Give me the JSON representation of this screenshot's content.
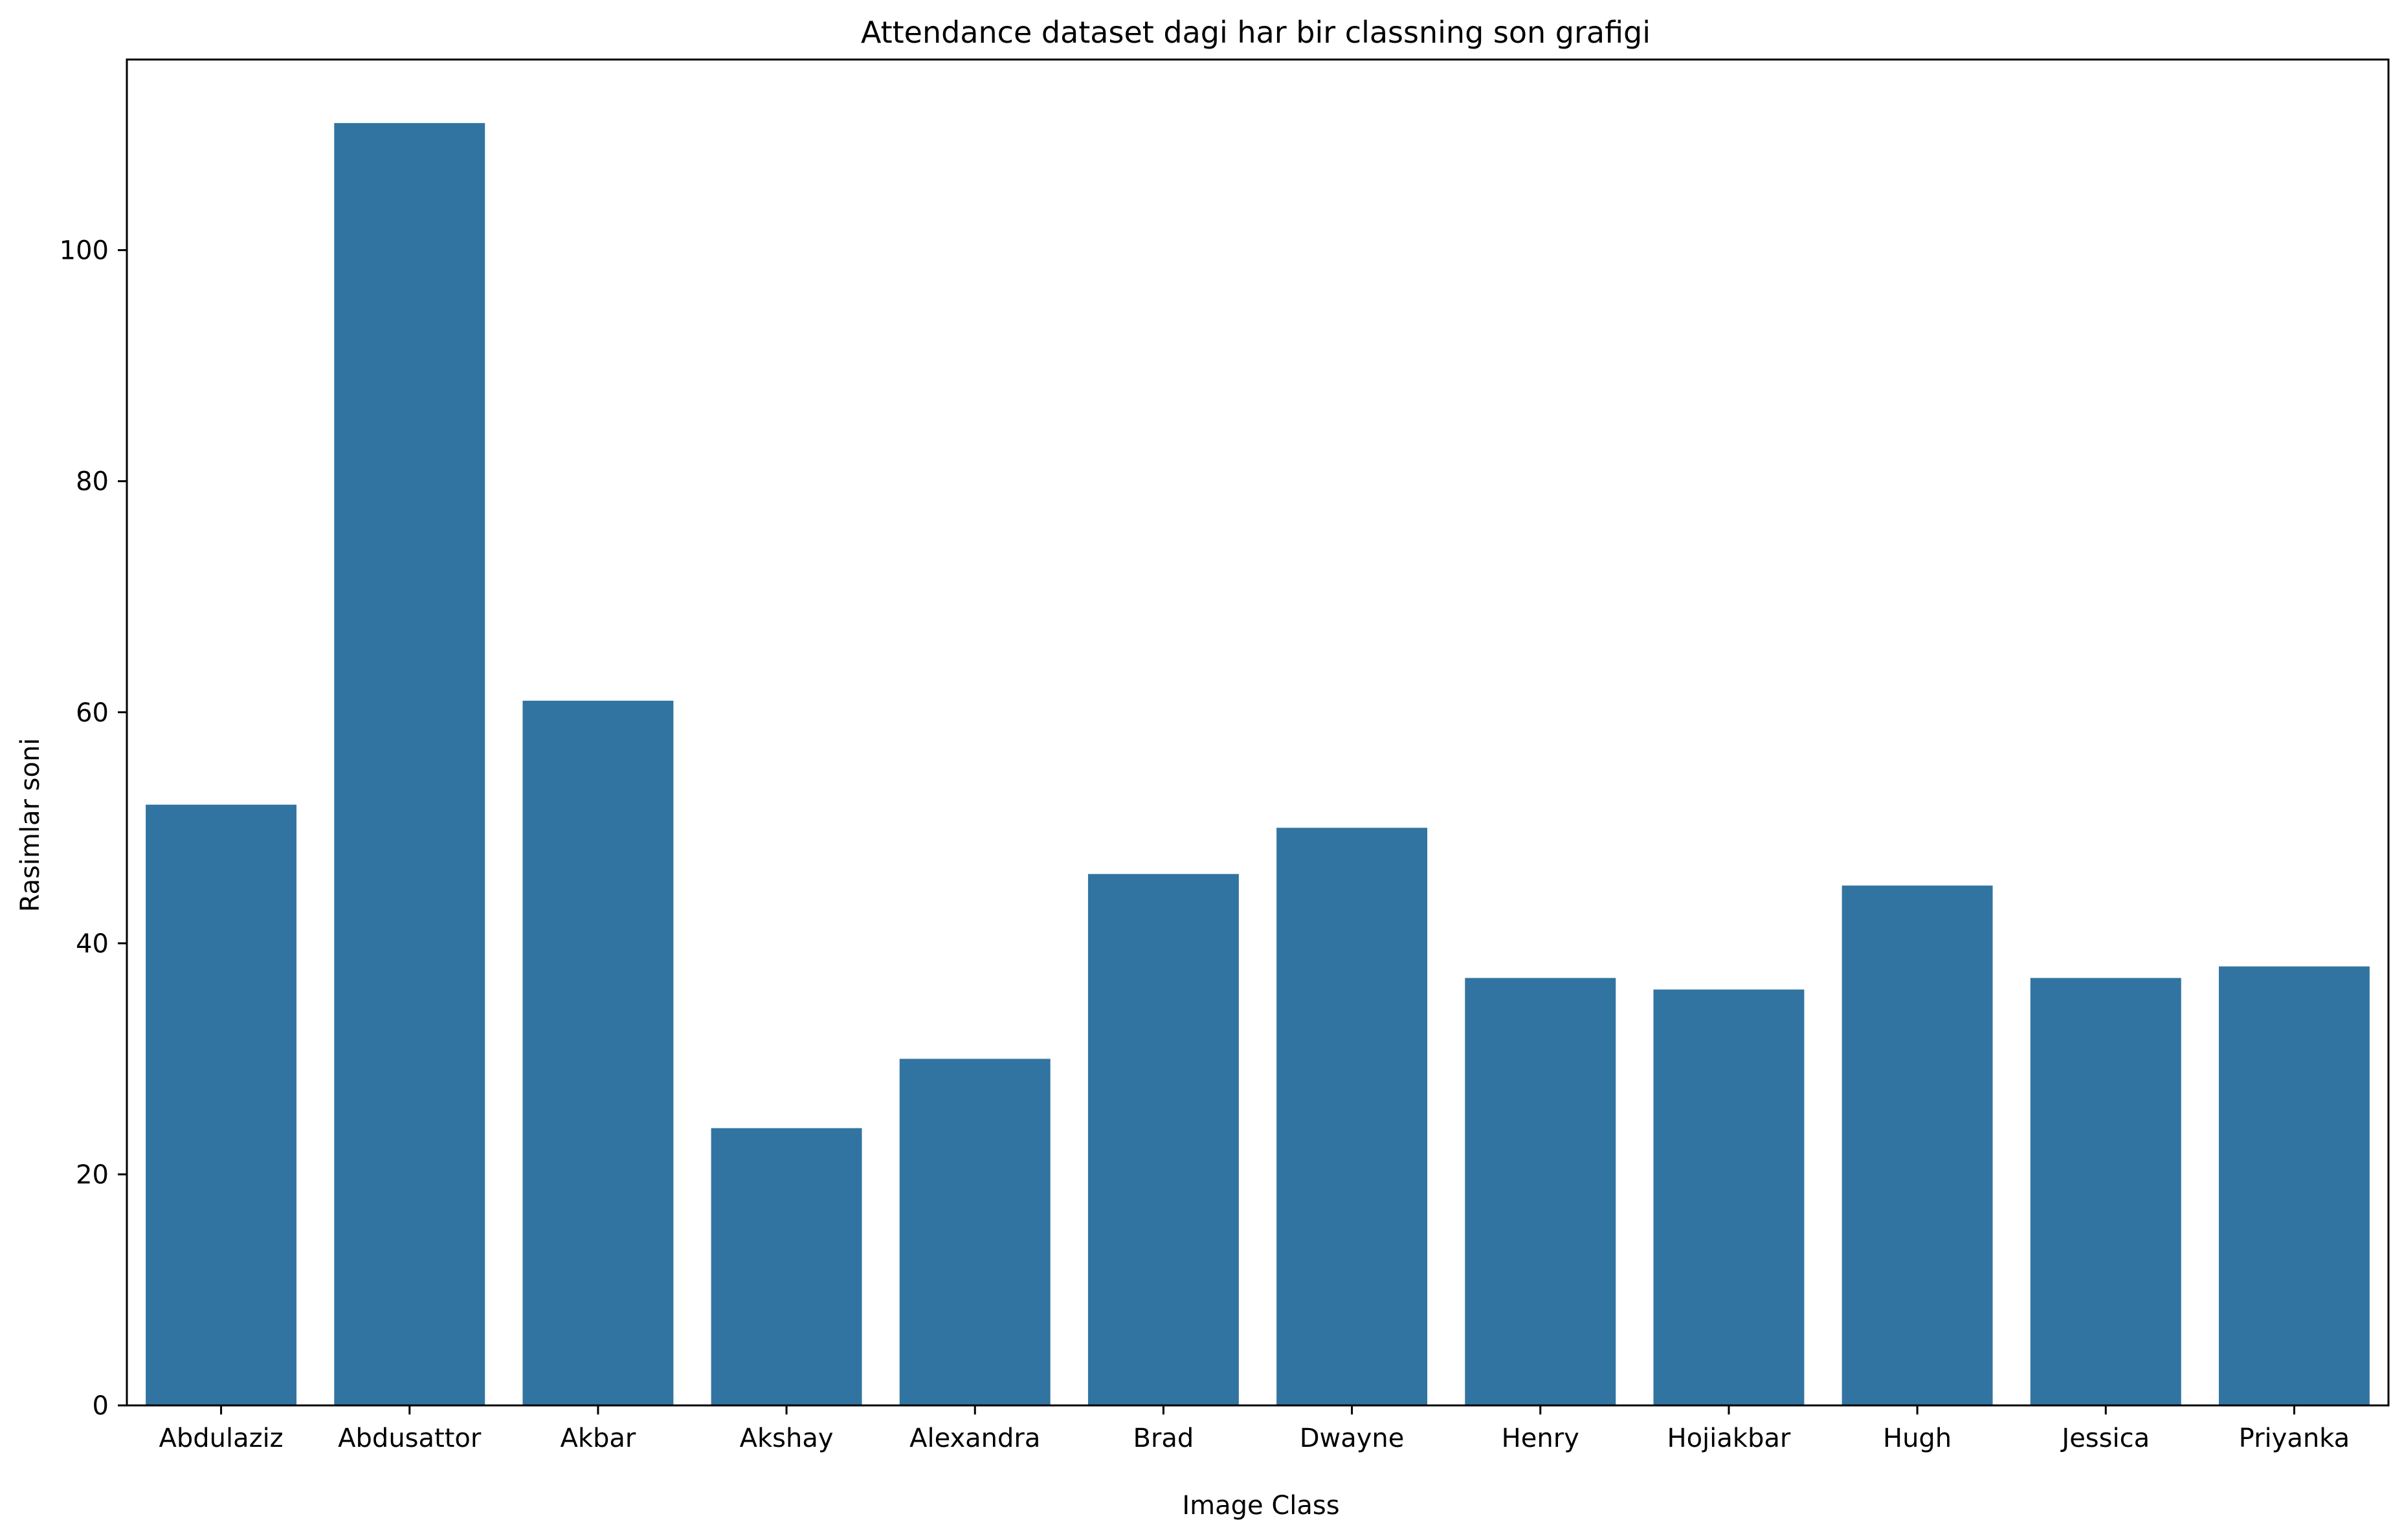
{
  "chart_data": {
    "type": "bar",
    "title": "Attendance dataset dagi har bir classning son grafigi",
    "xlabel": "Image Class",
    "ylabel": "Rasimlar soni",
    "categories": [
      "Abdulaziz",
      "Abdusattor",
      "Akbar",
      "Akshay",
      "Alexandra",
      "Brad",
      "Dwayne",
      "Henry",
      "Hojiakbar",
      "Hugh",
      "Jessica",
      "Priyanka"
    ],
    "values": [
      52,
      111,
      61,
      24,
      30,
      46,
      50,
      37,
      36,
      45,
      37,
      38
    ],
    "ylim": [
      0,
      116.5
    ],
    "yticks": [
      0,
      20,
      40,
      60,
      80,
      100
    ],
    "grid": false,
    "legend": "none",
    "bar_color": "#3274a1"
  }
}
